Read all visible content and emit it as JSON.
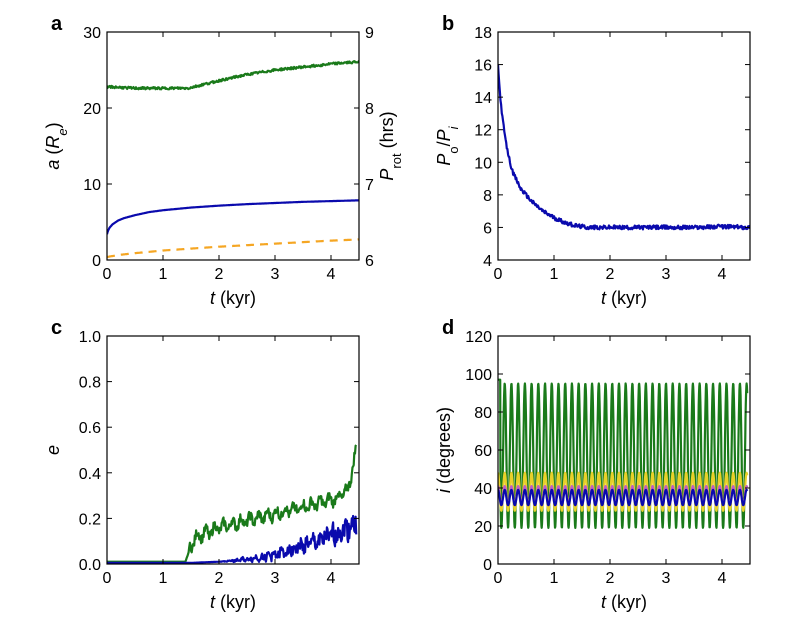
{
  "chart_data": [
    {
      "panel_label": "a",
      "type": "line",
      "xlabel": "t (kyr)",
      "ylabel": "a (Re)",
      "ylabel_right": "Prot (hrs)",
      "xlim": [
        0,
        4.5
      ],
      "ylim": [
        0,
        30
      ],
      "ylim_right": [
        6,
        9
      ],
      "xticks": [
        "0",
        "1",
        "2",
        "3",
        "4"
      ],
      "yticks": [
        "0",
        "10",
        "20",
        "30"
      ],
      "yticks_right": [
        "6",
        "7",
        "8",
        "9"
      ],
      "series": [
        {
          "color": "#0a0aad",
          "style": "solid",
          "x": [
            0,
            0.02,
            0.05,
            0.1,
            0.2,
            0.3,
            0.5,
            0.75,
            1.0,
            1.5,
            2.0,
            2.5,
            3.0,
            3.5,
            4.0,
            4.5
          ],
          "y": [
            3.4,
            3.9,
            4.3,
            4.7,
            5.2,
            5.5,
            5.9,
            6.3,
            6.55,
            6.9,
            7.15,
            7.35,
            7.5,
            7.65,
            7.75,
            7.85
          ]
        },
        {
          "color": "#f5a623",
          "style": "dashed",
          "x": [
            0,
            0.25,
            0.5,
            1.0,
            1.5,
            2.0,
            2.5,
            3.0,
            3.5,
            4.0,
            4.5
          ],
          "y": [
            0.4,
            0.7,
            0.9,
            1.25,
            1.5,
            1.75,
            1.95,
            2.15,
            2.35,
            2.55,
            2.7
          ]
        },
        {
          "color": "#1a7a1a",
          "style": "solid",
          "axis": "right",
          "x": [
            0,
            0.5,
            1.0,
            1.45,
            2.0,
            2.5,
            3.0,
            3.5,
            4.0,
            4.5
          ],
          "y": [
            8.28,
            8.26,
            8.26,
            8.26,
            8.36,
            8.44,
            8.5,
            8.54,
            8.58,
            8.61
          ]
        }
      ]
    },
    {
      "panel_label": "b",
      "type": "line",
      "xlabel": "t (kyr)",
      "ylabel": "Po/Pi",
      "xlim": [
        0,
        4.5
      ],
      "ylim": [
        4,
        18
      ],
      "xticks": [
        "0",
        "1",
        "2",
        "3",
        "4"
      ],
      "yticks": [
        "4",
        "6",
        "8",
        "10",
        "12",
        "14",
        "16",
        "18"
      ],
      "series": [
        {
          "color": "#0a0aad",
          "style": "solid",
          "x": [
            0,
            0.03,
            0.08,
            0.15,
            0.25,
            0.4,
            0.6,
            0.8,
            1.0,
            1.2,
            1.4,
            1.6,
            2.0,
            2.5,
            3.0,
            3.5,
            4.0,
            4.5
          ],
          "y": [
            16.0,
            14.4,
            12.7,
            11.0,
            9.5,
            8.4,
            7.6,
            7.0,
            6.6,
            6.3,
            6.1,
            6.0,
            6.0,
            6.0,
            6.0,
            6.0,
            6.05,
            6.0
          ]
        }
      ]
    },
    {
      "panel_label": "c",
      "type": "line",
      "xlabel": "t (kyr)",
      "ylabel": "e",
      "xlim": [
        0,
        4.5
      ],
      "ylim": [
        0,
        1.0
      ],
      "xticks": [
        "0",
        "1",
        "2",
        "3",
        "4"
      ],
      "yticks": [
        "0.0",
        "0.2",
        "0.4",
        "0.6",
        "0.8",
        "1.0"
      ],
      "series": [
        {
          "color": "#1a7a1a",
          "style": "solid",
          "x": [
            0,
            0.5,
            1.0,
            1.4,
            1.5,
            1.6,
            2.0,
            2.5,
            3.0,
            3.5,
            4.0,
            4.3,
            4.45
          ],
          "y": [
            0.01,
            0.01,
            0.01,
            0.01,
            0.08,
            0.12,
            0.16,
            0.19,
            0.22,
            0.25,
            0.28,
            0.32,
            0.5
          ]
        },
        {
          "color": "#0a0aad",
          "style": "solid",
          "x": [
            0,
            1.0,
            1.5,
            2.0,
            2.5,
            3.0,
            3.5,
            4.0,
            4.45
          ],
          "y": [
            0.005,
            0.005,
            0.005,
            0.01,
            0.02,
            0.04,
            0.08,
            0.12,
            0.18
          ]
        }
      ]
    },
    {
      "panel_label": "d",
      "type": "line",
      "xlabel": "t (kyr)",
      "ylabel": "i (degrees)",
      "xlim": [
        0,
        4.5
      ],
      "ylim": [
        0,
        120
      ],
      "xticks": [
        "0",
        "1",
        "2",
        "3",
        "4"
      ],
      "yticks": [
        "0",
        "20",
        "40",
        "60",
        "80",
        "100",
        "120"
      ],
      "series": [
        {
          "color": "#1a7a1a",
          "style": "oscillating",
          "center": 57,
          "amplitude": 38,
          "period": 0.12,
          "x_start": 0,
          "x_end": 4.45,
          "y_start": 97
        },
        {
          "color": "#e8d02a",
          "style": "oscillating",
          "center": 38,
          "amplitude": 10,
          "period": 0.12,
          "x_start": 0,
          "x_end": 4.45
        },
        {
          "color": "#c060c0",
          "style": "oscillating",
          "center": 36,
          "amplitude": 5,
          "period": 0.12,
          "x_start": 0,
          "x_end": 4.45
        },
        {
          "color": "#0a0aad",
          "style": "oscillating",
          "center": 35,
          "amplitude": 4,
          "period": 0.12,
          "x_start": 0,
          "x_end": 4.45
        }
      ]
    }
  ]
}
